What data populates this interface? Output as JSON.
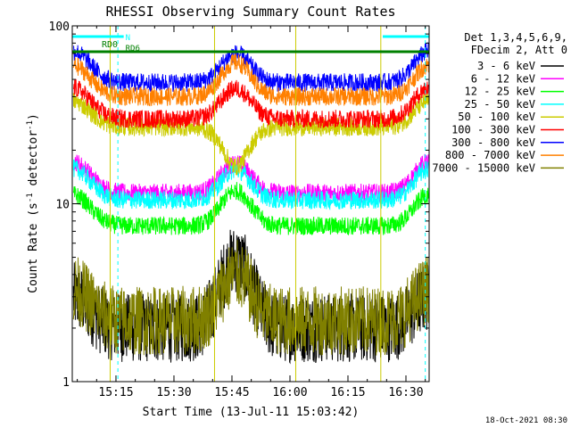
{
  "chart_data": {
    "type": "line",
    "title": "RHESSI Observing Summary Count Rates",
    "xlabel": "Start Time (13-Jul-11 15:03:42)",
    "ylabel": "Count Rate (s",
    "ylabel_sup": "-1",
    "ylabel_tail": " detector",
    "ylabel_end": ")",
    "yscale": "log",
    "ylim": [
      1,
      100
    ],
    "xlim_minutes": [
      15.06,
      16.6
    ],
    "x_ticks": [
      "15:15",
      "15:30",
      "15:45",
      "16:00",
      "16:15",
      "16:30"
    ],
    "y_ticks": [
      "1",
      "10",
      "100"
    ],
    "legend_header": [
      "Det 1,3,4,5,6,9,",
      "FDecim 2, Att 0"
    ],
    "legend_position": "top-right",
    "timestamp": "18-Oct-2021 08:30",
    "flags": [
      {
        "label": "RD0",
        "color": "#00ffff"
      },
      {
        "label": "N",
        "color": "#00ffff"
      },
      {
        "label": "RD6",
        "color": "#008000"
      }
    ],
    "series": [
      {
        "name": "3 - 6 keV",
        "color": "#000000",
        "base": 2.0,
        "peak": 8.0
      },
      {
        "name": "6 - 12 keV",
        "color": "#ff00ff",
        "base": 11.5,
        "peak": 15.0
      },
      {
        "name": "12 - 25 keV",
        "color": "#00ff00",
        "base": 7.5,
        "peak": 12.0
      },
      {
        "name": "25 - 50 keV",
        "color": "#00ffff",
        "base": 10.5,
        "peak": 14.0
      },
      {
        "name": "50 - 100 keV",
        "color": "#cccc00",
        "base": 27.0,
        "peak": 17.0
      },
      {
        "name": "100 - 300 keV",
        "color": "#ff0000",
        "base": 30.0,
        "peak": 40.0
      },
      {
        "name": "300 - 800 keV",
        "color": "#0000ff",
        "base": 48.0,
        "peak": 60.0
      },
      {
        "name": "800 - 7000 keV",
        "color": "#ff8000",
        "base": 40.0,
        "peak": 62.0
      },
      {
        "name": "7000 - 15000 keV",
        "color": "#808000",
        "base": 2.2,
        "peak": 5.0
      }
    ]
  }
}
